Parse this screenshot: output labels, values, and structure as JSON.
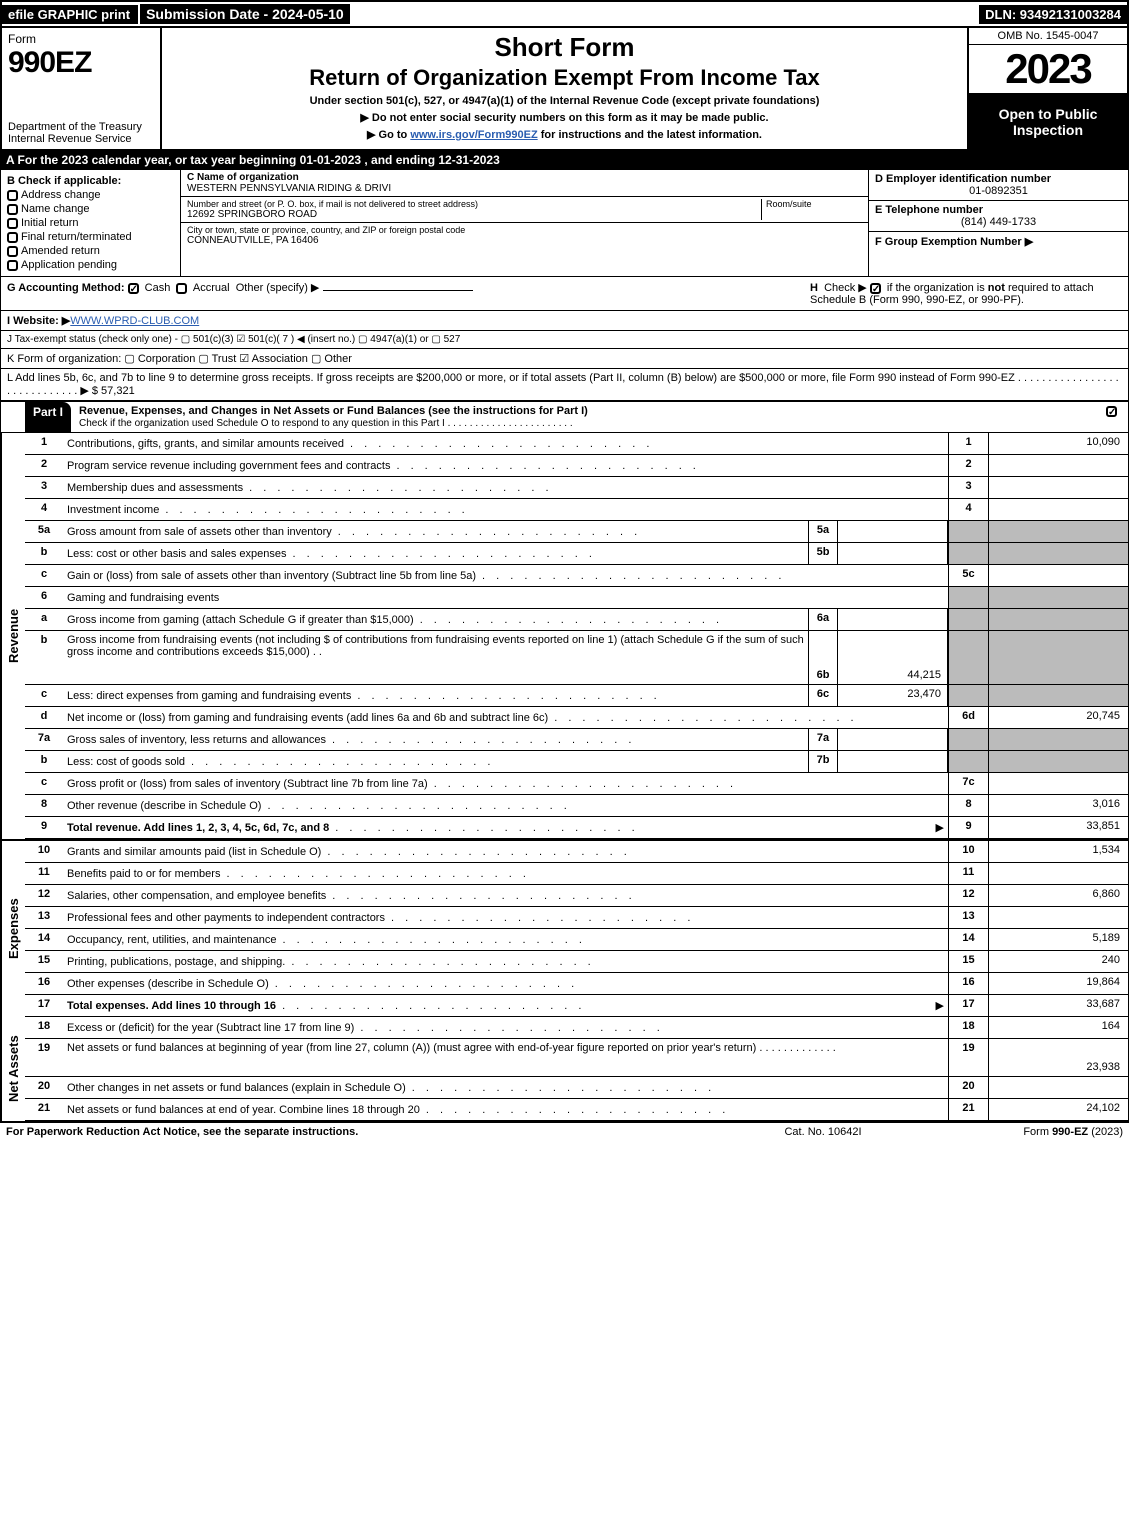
{
  "topbar": {
    "efile": "efile GRAPHIC print",
    "submission": "Submission Date - 2024-05-10",
    "dln": "DLN: 93492131003284"
  },
  "header": {
    "form": "Form",
    "form_num": "990EZ",
    "dept": "Department of the Treasury\nInternal Revenue Service",
    "short_form": "Short Form",
    "title": "Return of Organization Exempt From Income Tax",
    "under": "Under section 501(c), 527, or 4947(a)(1) of the Internal Revenue Code (except private foundations)",
    "line1": "▶ Do not enter social security numbers on this form as it may be made public.",
    "line2_pre": "▶ Go to ",
    "line2_link": "www.irs.gov/Form990EZ",
    "line2_post": " for instructions and the latest information.",
    "omb": "OMB No. 1545-0047",
    "year": "2023",
    "open": "Open to Public Inspection"
  },
  "sectionA": "A  For the 2023 calendar year, or tax year beginning 01-01-2023 , and ending 12-31-2023",
  "sectionB": {
    "label": "B  Check if applicable:",
    "items": [
      "Address change",
      "Name change",
      "Initial return",
      "Final return/terminated",
      "Amended return",
      "Application pending"
    ]
  },
  "sectionC": {
    "c_label": "C Name of organization",
    "c_val": "WESTERN PENNSYLVANIA RIDING & DRIVI",
    "addr_label": "Number and street (or P. O. box, if mail is not delivered to street address)",
    "addr_val": "12692 SPRINGBORO ROAD",
    "room": "Room/suite",
    "city_label": "City or town, state or province, country, and ZIP or foreign postal code",
    "city_val": "CONNEAUTVILLE, PA  16406"
  },
  "sectionD": {
    "d_label": "D Employer identification number",
    "d_val": "01-0892351",
    "e_label": "E Telephone number",
    "e_val": "(814) 449-1733",
    "f_label": "F Group Exemption Number   ▶"
  },
  "rowG": {
    "g": "G Accounting Method:",
    "cash": "Cash",
    "accrual": "Accrual",
    "other": "Other (specify) ▶",
    "h": "H  Check ▶       if the organization is not required to attach Schedule B (Form 990, 990-EZ, or 990-PF)."
  },
  "rowI": {
    "label": "I Website: ▶",
    "val": "WWW.WPRD-CLUB.COM"
  },
  "rowJ": "J Tax-exempt status (check only one) -  ▢ 501(c)(3)  ☑ 501(c)( 7 ) ◀ (insert no.)  ▢ 4947(a)(1) or  ▢ 527",
  "rowK": "K Form of organization:   ▢ Corporation   ▢ Trust   ☑ Association   ▢ Other",
  "rowL": {
    "text": "L Add lines 5b, 6c, and 7b to line 9 to determine gross receipts. If gross receipts are $200,000 or more, or if total assets (Part II, column (B) below) are $500,000 or more, file Form 990 instead of Form 990-EZ  . . . . . . . . . . . . . . . . . . . . . . . . . . . . .   ▶ $ ",
    "val": "57,321"
  },
  "partI": {
    "label": "Part I",
    "title": "Revenue, Expenses, and Changes in Net Assets or Fund Balances (see the instructions for Part I)",
    "sub": "Check if the organization used Schedule O to respond to any question in this Part I . . . . . . . . . . . . . . . . . . . . . . ."
  },
  "revenue_label": "Revenue",
  "expenses_label": "Expenses",
  "net_label": "Net Assets",
  "lines": {
    "1": {
      "n": "1",
      "d": "Contributions, gifts, grants, and similar amounts received",
      "rn": "1",
      "rv": "10,090"
    },
    "2": {
      "n": "2",
      "d": "Program service revenue including government fees and contracts",
      "rn": "2",
      "rv": ""
    },
    "3": {
      "n": "3",
      "d": "Membership dues and assessments",
      "rn": "3",
      "rv": ""
    },
    "4": {
      "n": "4",
      "d": "Investment income",
      "rn": "4",
      "rv": ""
    },
    "5a": {
      "n": "5a",
      "d": "Gross amount from sale of assets other than inventory",
      "mn": "5a",
      "mv": ""
    },
    "5b": {
      "n": "b",
      "d": "Less: cost or other basis and sales expenses",
      "mn": "5b",
      "mv": ""
    },
    "5c": {
      "n": "c",
      "d": "Gain or (loss) from sale of assets other than inventory (Subtract line 5b from line 5a)",
      "rn": "5c",
      "rv": ""
    },
    "6": {
      "n": "6",
      "d": "Gaming and fundraising events"
    },
    "6a": {
      "n": "a",
      "d": "Gross income from gaming (attach Schedule G if greater than $15,000)",
      "mn": "6a",
      "mv": ""
    },
    "6b": {
      "n": "b",
      "d": "Gross income from fundraising events (not including $                         of contributions from fundraising events reported on line 1) (attach Schedule G if the sum of such gross income and contributions exceeds $15,000)",
      "mn": "6b",
      "mv": "44,215"
    },
    "6c": {
      "n": "c",
      "d": "Less: direct expenses from gaming and fundraising events",
      "mn": "6c",
      "mv": "23,470"
    },
    "6d": {
      "n": "d",
      "d": "Net income or (loss) from gaming and fundraising events (add lines 6a and 6b and subtract line 6c)",
      "rn": "6d",
      "rv": "20,745"
    },
    "7a": {
      "n": "7a",
      "d": "Gross sales of inventory, less returns and allowances",
      "mn": "7a",
      "mv": ""
    },
    "7b": {
      "n": "b",
      "d": "Less: cost of goods sold",
      "mn": "7b",
      "mv": ""
    },
    "7c": {
      "n": "c",
      "d": "Gross profit or (loss) from sales of inventory (Subtract line 7b from line 7a)",
      "rn": "7c",
      "rv": ""
    },
    "8": {
      "n": "8",
      "d": "Other revenue (describe in Schedule O)",
      "rn": "8",
      "rv": "3,016"
    },
    "9": {
      "n": "9",
      "d": "Total revenue. Add lines 1, 2, 3, 4, 5c, 6d, 7c, and 8",
      "rn": "9",
      "rv": "33,851",
      "bold": true,
      "arrow": true
    },
    "10": {
      "n": "10",
      "d": "Grants and similar amounts paid (list in Schedule O)",
      "rn": "10",
      "rv": "1,534"
    },
    "11": {
      "n": "11",
      "d": "Benefits paid to or for members",
      "rn": "11",
      "rv": ""
    },
    "12": {
      "n": "12",
      "d": "Salaries, other compensation, and employee benefits",
      "rn": "12",
      "rv": "6,860"
    },
    "13": {
      "n": "13",
      "d": "Professional fees and other payments to independent contractors",
      "rn": "13",
      "rv": ""
    },
    "14": {
      "n": "14",
      "d": "Occupancy, rent, utilities, and maintenance",
      "rn": "14",
      "rv": "5,189"
    },
    "15": {
      "n": "15",
      "d": "Printing, publications, postage, and shipping.",
      "rn": "15",
      "rv": "240"
    },
    "16": {
      "n": "16",
      "d": "Other expenses (describe in Schedule O)",
      "rn": "16",
      "rv": "19,864"
    },
    "17": {
      "n": "17",
      "d": "Total expenses. Add lines 10 through 16",
      "rn": "17",
      "rv": "33,687",
      "bold": true,
      "arrow": true
    },
    "18": {
      "n": "18",
      "d": "Excess or (deficit) for the year (Subtract line 17 from line 9)",
      "rn": "18",
      "rv": "164"
    },
    "19": {
      "n": "19",
      "d": "Net assets or fund balances at beginning of year (from line 27, column (A)) (must agree with end-of-year figure reported on prior year's return)",
      "rn": "19",
      "rv": "23,938"
    },
    "20": {
      "n": "20",
      "d": "Other changes in net assets or fund balances (explain in Schedule O)",
      "rn": "20",
      "rv": ""
    },
    "21": {
      "n": "21",
      "d": "Net assets or fund balances at end of year. Combine lines 18 through 20",
      "rn": "21",
      "rv": "24,102"
    }
  },
  "footer": {
    "l": "For Paperwork Reduction Act Notice, see the separate instructions.",
    "m": "Cat. No. 10642I",
    "r": "Form 990-EZ (2023)"
  }
}
